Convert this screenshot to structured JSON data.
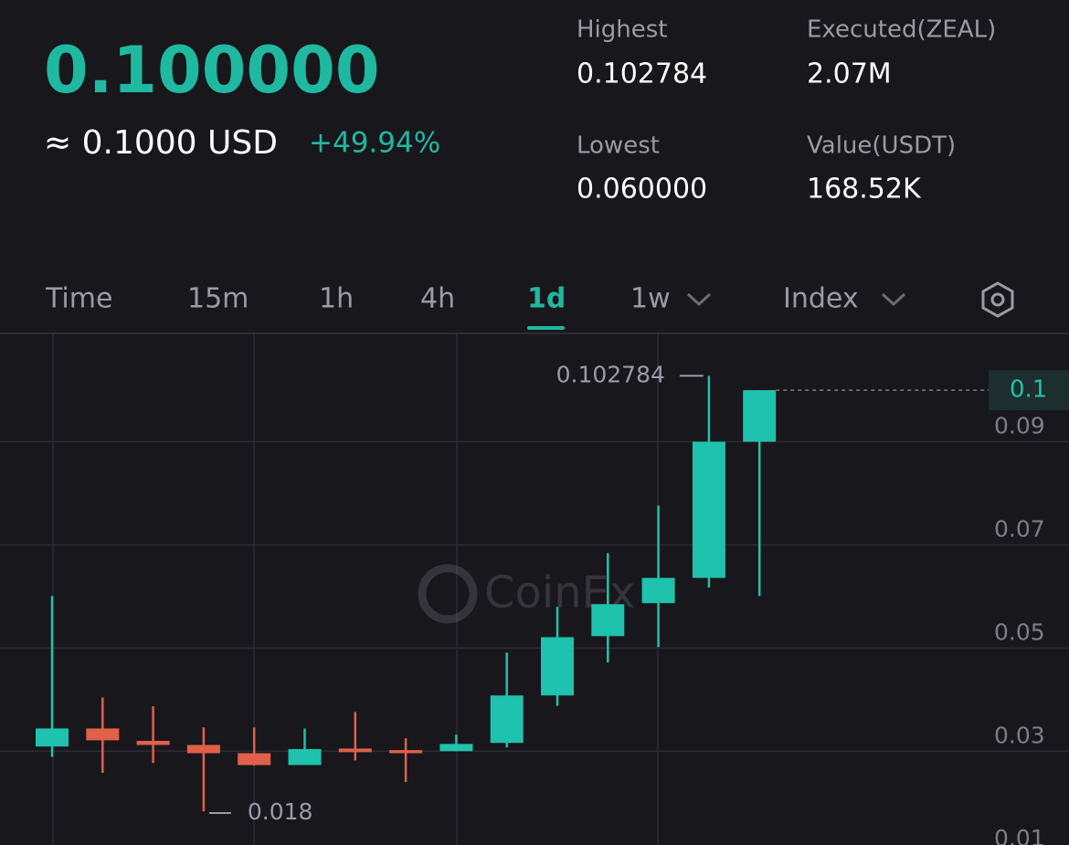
{
  "header": {
    "price": "0.100000",
    "fiat": "≈ 0.1000 USD",
    "change": "+49.94%",
    "stats": [
      {
        "label": "Highest",
        "value": "0.102784"
      },
      {
        "label": "Executed(ZEAL)",
        "value": "2.07M"
      },
      {
        "label": "Lowest",
        "value": "0.060000"
      },
      {
        "label": "Value(USDT)",
        "value": "168.52K"
      }
    ]
  },
  "tabs": [
    "Time",
    "15m",
    "1h",
    "4h",
    "1d",
    "1w",
    "Index"
  ],
  "chart_data": {
    "type": "candlestick",
    "watermark": "CoinEx",
    "open": [
      0.0309,
      0.0344,
      0.032,
      0.0312,
      0.0296,
      0.0273,
      0.0305,
      0.0302,
      0.03,
      0.0316,
      0.0408,
      0.0523,
      0.0587,
      0.0636,
      0.09
    ],
    "high": [
      0.0601,
      0.0404,
      0.0387,
      0.0346,
      0.0346,
      0.0344,
      0.0376,
      0.0325,
      0.0332,
      0.0491,
      0.058,
      0.0684,
      0.0776,
      0.102784,
      0.1
    ],
    "low": [
      0.0289,
      0.0258,
      0.0277,
      0.0183,
      0.0272,
      0.0273,
      0.0282,
      0.024,
      0.03,
      0.0307,
      0.0388,
      0.0472,
      0.0502,
      0.0617,
      0.0601
    ],
    "close": [
      0.0344,
      0.0321,
      0.0312,
      0.0296,
      0.0273,
      0.0304,
      0.0298,
      0.0296,
      0.0314,
      0.0408,
      0.0521,
      0.0585,
      0.0636,
      0.09,
      0.1
    ],
    "up_color": "#1fc2ad",
    "down_color": "#e0604a",
    "ylim": [
      0.0118,
      0.111
    ],
    "yticks": [
      0.01,
      0.03,
      0.05,
      0.07,
      0.09
    ],
    "grid": true,
    "high_label": 0.102784,
    "low_label": 0.018,
    "last_price": 0.1
  }
}
